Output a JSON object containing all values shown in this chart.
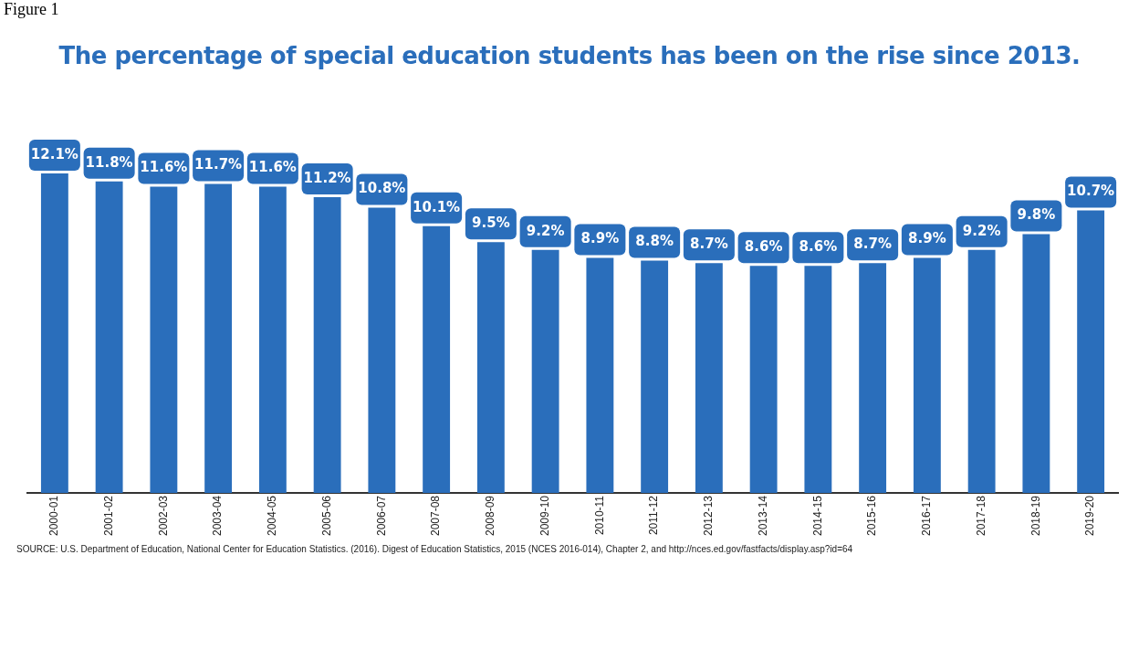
{
  "chart_data": {
    "type": "bar",
    "title": "The percentage of special education students has been on the rise since 2013.",
    "categories": [
      "2000-01",
      "2001-02",
      "2002-03",
      "2003-04",
      "2004-05",
      "2005-06",
      "2006-07",
      "2007-08",
      "2008-09",
      "2009-10",
      "2010-11",
      "2011-12",
      "2012-13",
      "2013-14",
      "2014-15",
      "2015-16",
      "2016-17",
      "2017-18",
      "2018-19",
      "2019-20"
    ],
    "values": [
      12.1,
      11.8,
      11.6,
      11.7,
      11.6,
      11.2,
      10.8,
      10.1,
      9.5,
      9.2,
      8.9,
      8.8,
      8.7,
      8.6,
      8.6,
      8.7,
      8.9,
      9.2,
      9.8,
      10.7
    ],
    "value_labels": [
      "12.1%",
      "11.8%",
      "11.6%",
      "11.7%",
      "11.6%",
      "11.2%",
      "10.8%",
      "10.1%",
      "9.5%",
      "9.2%",
      "8.9%",
      "8.8%",
      "8.7%",
      "8.6%",
      "8.6%",
      "8.7%",
      "8.9%",
      "9.2%",
      "9.8%",
      "10.7%"
    ],
    "color": "#2a6ebb",
    "grid": false,
    "legend": false,
    "annotations": [
      "Figure 1",
      "SOURCE: U.S. Department of Education, National Center for Education Statistics. (2016). Digest of Education Statistics, 2015 (NCES 2016-014), Chapter 2, and http://nces.ed.gov/fastfacts/display.asp?id=64"
    ]
  }
}
